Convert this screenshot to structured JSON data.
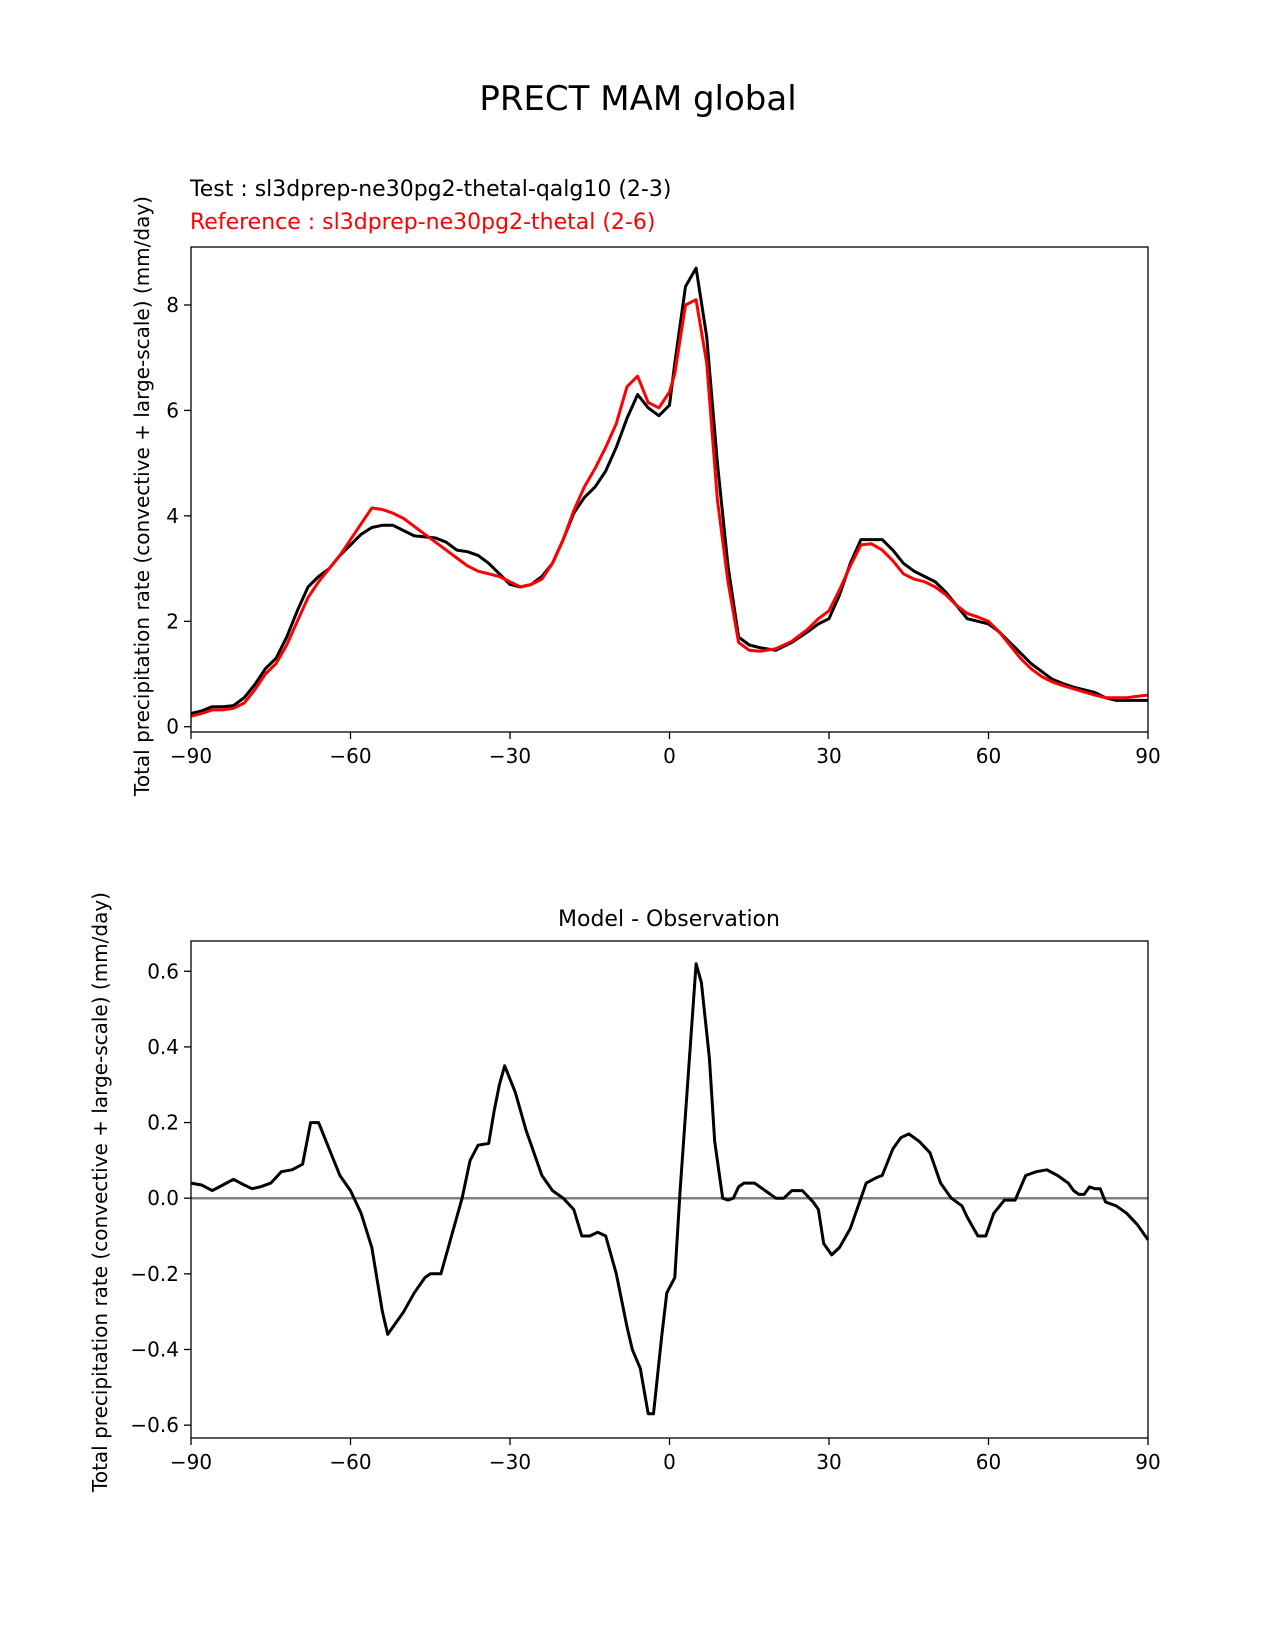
{
  "figure": {
    "title": "PRECT MAM global"
  },
  "chart_data": [
    {
      "type": "line",
      "test_label": "Test : sl3dprep-ne30pg2-thetal-qalg10 (2-3)",
      "reference_label": "Reference : sl3dprep-ne30pg2-thetal (2-6)",
      "ylabel": "Total precipitation rate (convective + large-scale) (mm/day)",
      "xlim": [
        -90,
        90
      ],
      "ylim": [
        -0.1,
        9.1
      ],
      "xticks": [
        -90,
        -60,
        -30,
        0,
        30,
        60,
        90
      ],
      "xtick_labels": [
        "−90",
        "−60",
        "−30",
        "0",
        "30",
        "60",
        "90"
      ],
      "yticks": [
        0,
        2,
        4,
        6,
        8
      ],
      "ytick_labels": [
        "0",
        "2",
        "4",
        "6",
        "8"
      ],
      "colors": {
        "test": "#000000",
        "reference": "#ff0000"
      },
      "series": [
        {
          "key": "test",
          "x": [
            -90,
            -88,
            -86,
            -84,
            -82,
            -80,
            -78,
            -76,
            -74,
            -72,
            -70,
            -68,
            -66,
            -64,
            -62,
            -60,
            -58,
            -56,
            -54,
            -52,
            -50,
            -48,
            -46,
            -44,
            -42,
            -40,
            -38,
            -36,
            -34,
            -32,
            -30,
            -28,
            -26,
            -24,
            -22,
            -20,
            -18,
            -16,
            -14,
            -12,
            -10,
            -8,
            -6,
            -4,
            -2,
            0,
            1,
            3,
            5,
            7,
            9,
            11,
            13,
            15,
            17,
            20,
            23,
            26,
            28,
            30,
            32,
            34,
            36,
            38,
            40,
            42,
            44,
            46,
            48,
            50,
            52,
            54,
            56,
            58,
            60,
            62,
            64,
            66,
            68,
            70,
            72,
            74,
            76,
            78,
            80,
            82,
            84,
            86,
            88,
            90
          ],
          "values": [
            0.25,
            0.3,
            0.38,
            0.38,
            0.4,
            0.55,
            0.8,
            1.1,
            1.3,
            1.7,
            2.2,
            2.65,
            2.85,
            3.0,
            3.25,
            3.45,
            3.65,
            3.78,
            3.82,
            3.82,
            3.72,
            3.62,
            3.6,
            3.58,
            3.5,
            3.35,
            3.32,
            3.25,
            3.1,
            2.9,
            2.7,
            2.65,
            2.7,
            2.85,
            3.1,
            3.55,
            4.05,
            4.35,
            4.55,
            4.85,
            5.3,
            5.85,
            6.3,
            6.05,
            5.9,
            6.1,
            6.9,
            8.35,
            8.7,
            7.4,
            5.0,
            3.05,
            1.7,
            1.55,
            1.5,
            1.45,
            1.6,
            1.8,
            1.95,
            2.05,
            2.5,
            3.1,
            3.55,
            3.55,
            3.55,
            3.35,
            3.1,
            2.95,
            2.85,
            2.75,
            2.55,
            2.3,
            2.05,
            2.0,
            1.95,
            1.8,
            1.6,
            1.4,
            1.2,
            1.05,
            0.9,
            0.82,
            0.75,
            0.7,
            0.65,
            0.55,
            0.5,
            0.5,
            0.5,
            0.5
          ]
        },
        {
          "key": "reference",
          "x": [
            -90,
            -88,
            -86,
            -84,
            -82,
            -80,
            -78,
            -76,
            -74,
            -72,
            -70,
            -68,
            -66,
            -64,
            -62,
            -60,
            -58,
            -56,
            -54,
            -52,
            -50,
            -48,
            -46,
            -44,
            -42,
            -40,
            -38,
            -36,
            -34,
            -32,
            -30,
            -28,
            -26,
            -24,
            -22,
            -20,
            -18,
            -16,
            -14,
            -12,
            -10,
            -8,
            -6,
            -4,
            -2,
            0,
            1,
            3,
            5,
            7,
            9,
            11,
            13,
            15,
            17,
            20,
            23,
            26,
            28,
            30,
            32,
            34,
            36,
            38,
            40,
            42,
            44,
            46,
            48,
            50,
            52,
            54,
            56,
            58,
            60,
            62,
            64,
            66,
            68,
            70,
            72,
            74,
            76,
            78,
            80,
            82,
            84,
            86,
            88,
            90
          ],
          "values": [
            0.2,
            0.25,
            0.32,
            0.32,
            0.35,
            0.45,
            0.7,
            1.0,
            1.2,
            1.55,
            2.0,
            2.45,
            2.75,
            3.0,
            3.25,
            3.55,
            3.85,
            4.15,
            4.12,
            4.05,
            3.95,
            3.8,
            3.65,
            3.5,
            3.35,
            3.2,
            3.05,
            2.95,
            2.9,
            2.85,
            2.75,
            2.65,
            2.7,
            2.8,
            3.1,
            3.55,
            4.1,
            4.55,
            4.9,
            5.3,
            5.75,
            6.45,
            6.65,
            6.15,
            6.05,
            6.35,
            6.7,
            8.0,
            8.1,
            6.9,
            4.3,
            2.75,
            1.6,
            1.45,
            1.43,
            1.48,
            1.62,
            1.85,
            2.05,
            2.2,
            2.6,
            3.05,
            3.45,
            3.47,
            3.35,
            3.15,
            2.9,
            2.8,
            2.75,
            2.65,
            2.5,
            2.3,
            2.15,
            2.08,
            2.0,
            1.8,
            1.55,
            1.3,
            1.1,
            0.95,
            0.85,
            0.78,
            0.72,
            0.66,
            0.6,
            0.55,
            0.55,
            0.55,
            0.58,
            0.6
          ]
        }
      ]
    },
    {
      "type": "line",
      "title": "Model - Observation",
      "ylabel": "Total precipitation rate (convective + large-scale) (mm/day)",
      "xlim": [
        -90,
        90
      ],
      "ylim": [
        -0.634,
        0.68
      ],
      "xticks": [
        -90,
        -60,
        -30,
        0,
        30,
        60,
        90
      ],
      "xtick_labels": [
        "−90",
        "−60",
        "−30",
        "0",
        "30",
        "60",
        "90"
      ],
      "yticks": [
        -0.6,
        -0.4,
        -0.2,
        0.0,
        0.2,
        0.4,
        0.6
      ],
      "ytick_labels": [
        "−0.6",
        "−0.4",
        "−0.2",
        "0.0",
        "0.2",
        "0.4",
        "0.6"
      ],
      "reference_line": {
        "y": 0,
        "color": "#808080"
      },
      "colors": {
        "diff": "#000000"
      },
      "series": [
        {
          "key": "diff",
          "x": [
            -90,
            -88,
            -86,
            -84,
            -82,
            -80,
            -78.5,
            -77,
            -75,
            -73,
            -71,
            -69,
            -67.5,
            -66,
            -64,
            -62,
            -60,
            -58,
            -56,
            -54,
            -53,
            -50,
            -48,
            -46,
            -45,
            -43,
            -41,
            -39,
            -37.5,
            -36,
            -34,
            -33,
            -32,
            -31,
            -29,
            -27,
            -25,
            -24,
            -22,
            -20,
            -18,
            -16.5,
            -15,
            -13.5,
            -12,
            -10,
            -8,
            -7,
            -5.5,
            -4,
            -3,
            -1.5,
            -0.5,
            1,
            2,
            3.5,
            5,
            6,
            7.5,
            8.5,
            10,
            11,
            12,
            13,
            14,
            16,
            18,
            20,
            21.5,
            23,
            25,
            27,
            28,
            29,
            30.5,
            32,
            34,
            36,
            37,
            39,
            40,
            42,
            43.5,
            45,
            47,
            49,
            51,
            53,
            55,
            56,
            58,
            59.5,
            61,
            63,
            65,
            67,
            69,
            71,
            73,
            75,
            76,
            77,
            78,
            79,
            80,
            81,
            82,
            84,
            86,
            88,
            90
          ],
          "values": [
            0.04,
            0.035,
            0.02,
            0.035,
            0.05,
            0.035,
            0.025,
            0.03,
            0.04,
            0.07,
            0.075,
            0.09,
            0.2,
            0.2,
            0.13,
            0.06,
            0.02,
            -0.04,
            -0.13,
            -0.3,
            -0.36,
            -0.3,
            -0.25,
            -0.21,
            -0.2,
            -0.2,
            -0.1,
            0.0,
            0.1,
            0.14,
            0.145,
            0.23,
            0.3,
            0.35,
            0.28,
            0.18,
            0.1,
            0.06,
            0.02,
            0.0,
            -0.03,
            -0.1,
            -0.1,
            -0.09,
            -0.1,
            -0.2,
            -0.34,
            -0.4,
            -0.45,
            -0.57,
            -0.57,
            -0.37,
            -0.25,
            -0.21,
            0.02,
            0.32,
            0.62,
            0.57,
            0.37,
            0.15,
            0.0,
            -0.005,
            0.0,
            0.03,
            0.04,
            0.04,
            0.02,
            0.0,
            0.0,
            0.02,
            0.02,
            -0.01,
            -0.03,
            -0.12,
            -0.15,
            -0.13,
            -0.08,
            0.0,
            0.04,
            0.055,
            0.06,
            0.13,
            0.16,
            0.17,
            0.15,
            0.12,
            0.04,
            0.0,
            -0.02,
            -0.05,
            -0.1,
            -0.1,
            -0.04,
            -0.005,
            -0.005,
            0.06,
            0.07,
            0.075,
            0.06,
            0.04,
            0.02,
            0.01,
            0.01,
            0.03,
            0.025,
            0.025,
            -0.01,
            -0.02,
            -0.04,
            -0.07,
            -0.11
          ]
        }
      ]
    }
  ]
}
